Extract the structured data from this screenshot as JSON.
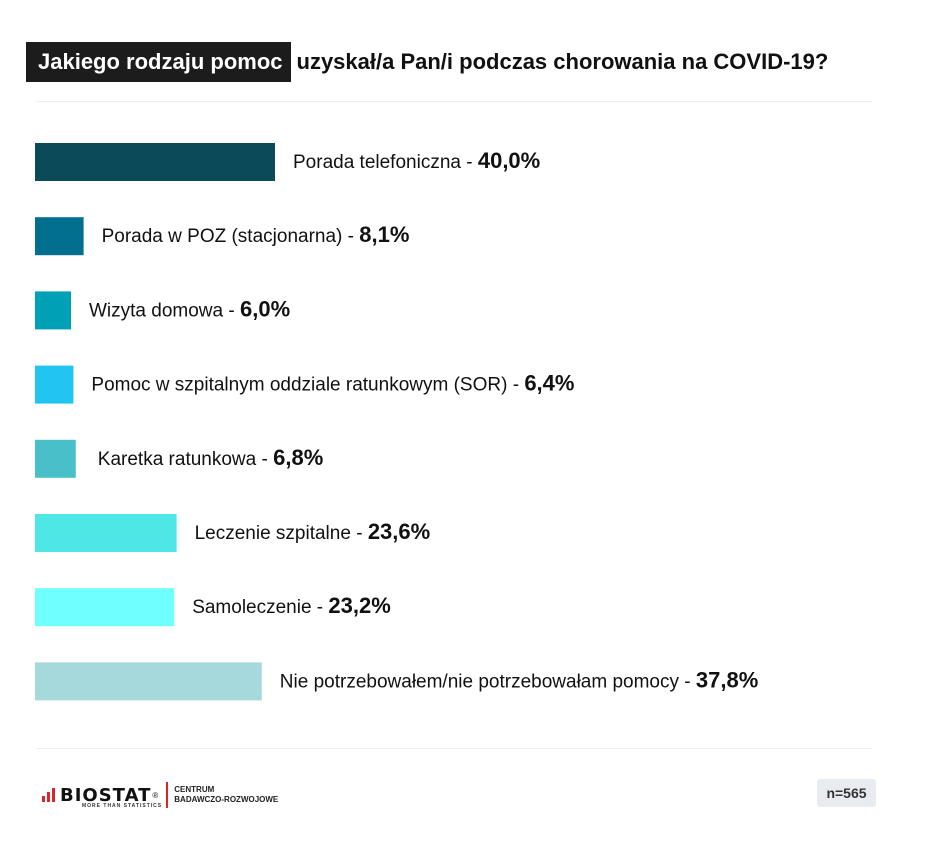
{
  "title": {
    "highlight": "Jakiego rodzaju pomoc",
    "rest": "uzyskał/a Pan/i podczas chorowania na COVID-19?"
  },
  "chart_data": {
    "type": "bar",
    "orientation": "horizontal",
    "categories": [
      "Porada telefoniczna",
      "Porada w POZ (stacjonarna)",
      "Wizyta domowa",
      "Pomoc w szpitalnym oddziale ratunkowym (SOR)",
      "Karetka ratunkowa",
      "Leczenie szpitalne",
      "Samoleczenie",
      "Nie potrzebowałem/nie potrzebowałam pomocy"
    ],
    "values": [
      40.0,
      8.1,
      6.0,
      6.4,
      6.8,
      23.6,
      23.2,
      37.8
    ],
    "value_labels": [
      "40,0%",
      "8,1%",
      "6,0%",
      "6,4%",
      "6,8%",
      "23,6%",
      "23,2%",
      "37,8%"
    ],
    "colors": [
      "#0b4a59",
      "#016f8d",
      "#00a0b6",
      "#22c4f0",
      "#49bfc9",
      "#4fe6e6",
      "#6fffff",
      "#a6d9dc"
    ],
    "separator": " - ",
    "legend": "none",
    "grid": false
  },
  "footer": {
    "logo_name": "BIOSTAT",
    "logo_tagline": "MORE THAN STATISTICS",
    "logo_reg": "®",
    "logo_center_line1": "CENTRUM",
    "logo_center_line2": "BADAWCZO-ROZWOJOWE",
    "sample": "n=565"
  }
}
